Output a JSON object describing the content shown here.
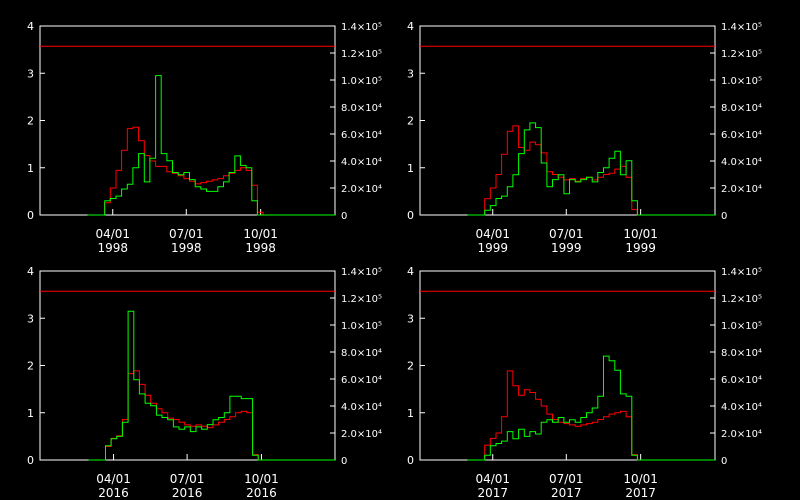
{
  "chart_data": [
    {
      "type": "line",
      "title": "",
      "year": "1998",
      "x_ticks": [
        {
          "top": "04/01",
          "bottom": "1998"
        },
        {
          "top": "07/01",
          "bottom": "1998"
        },
        {
          "top": "10/01",
          "bottom": "1998"
        }
      ],
      "y_left": {
        "lim": [
          0,
          4
        ],
        "ticks": [
          "0",
          "1",
          "2",
          "3",
          "4"
        ]
      },
      "y_right": {
        "lim": [
          0,
          140000
        ],
        "ticks": [
          "0",
          "2.0×10⁴",
          "4.0×10⁴",
          "6.0×10⁴",
          "8.0×10⁴",
          "1.0×10⁵",
          "1.2×10⁵",
          "1.4×10⁵"
        ]
      },
      "reference_line": {
        "axis": "right",
        "value": 125000,
        "color": "#ff0000"
      },
      "series": [
        {
          "axis": "right",
          "color": "#ff0000",
          "step": true,
          "x": [
            "1998-03-01",
            "1998-03-15",
            "1998-03-22",
            "1998-03-29",
            "1998-04-05",
            "1998-04-12",
            "1998-04-19",
            "1998-04-26",
            "1998-05-03",
            "1998-05-10",
            "1998-05-17",
            "1998-05-24",
            "1998-05-31",
            "1998-06-07",
            "1998-06-14",
            "1998-06-21",
            "1998-06-28",
            "1998-07-05",
            "1998-07-12",
            "1998-07-19",
            "1998-07-26",
            "1998-08-02",
            "1998-08-09",
            "1998-08-16",
            "1998-08-23",
            "1998-08-30",
            "1998-09-06",
            "1998-09-13",
            "1998-09-20",
            "1998-09-27",
            "1998-10-04",
            "1998-10-11",
            "1998-11-15",
            "1998-12-05"
          ],
          "y": [
            0,
            0,
            9000,
            20000,
            33000,
            48000,
            64000,
            65000,
            55000,
            44000,
            40000,
            36000,
            36000,
            32000,
            31000,
            29000,
            27000,
            25000,
            23000,
            24000,
            25000,
            26000,
            27000,
            29000,
            31000,
            33000,
            35000,
            33000,
            22000,
            2000,
            0,
            0,
            0,
            0
          ]
        },
        {
          "axis": "left",
          "color": "#00ff00",
          "step": true,
          "x": [
            "1998-03-01",
            "1998-03-15",
            "1998-03-22",
            "1998-03-29",
            "1998-04-05",
            "1998-04-12",
            "1998-04-19",
            "1998-04-26",
            "1998-05-03",
            "1998-05-10",
            "1998-05-17",
            "1998-05-24",
            "1998-05-31",
            "1998-06-07",
            "1998-06-14",
            "1998-06-21",
            "1998-06-28",
            "1998-07-05",
            "1998-07-12",
            "1998-07-19",
            "1998-07-26",
            "1998-08-02",
            "1998-08-09",
            "1998-08-16",
            "1998-08-23",
            "1998-08-30",
            "1998-09-06",
            "1998-09-13",
            "1998-09-20",
            "1998-09-27",
            "1998-10-04",
            "1998-10-11",
            "1998-11-15",
            "1998-12-05"
          ],
          "y": [
            0,
            0,
            0.3,
            0.35,
            0.4,
            0.55,
            0.65,
            1.0,
            1.3,
            0.7,
            1.2,
            2.95,
            1.3,
            1.15,
            0.9,
            0.85,
            0.9,
            0.75,
            0.6,
            0.55,
            0.5,
            0.5,
            0.6,
            0.7,
            0.9,
            1.25,
            1.05,
            1.0,
            0.3,
            0,
            0,
            0,
            0,
            0
          ]
        }
      ]
    },
    {
      "type": "line",
      "title": "",
      "year": "1999",
      "x_ticks": [
        {
          "top": "04/01",
          "bottom": "1999"
        },
        {
          "top": "07/01",
          "bottom": "1999"
        },
        {
          "top": "10/01",
          "bottom": "1999"
        }
      ],
      "y_left": {
        "lim": [
          0,
          4
        ],
        "ticks": [
          "0",
          "1",
          "2",
          "3",
          "4"
        ]
      },
      "y_right": {
        "lim": [
          0,
          140000
        ],
        "ticks": [
          "0",
          "2.0×10⁴",
          "4.0×10⁴",
          "6.0×10⁴",
          "8.0×10⁴",
          "1.0×10⁵",
          "1.2×10⁵",
          "1.4×10⁵"
        ]
      },
      "reference_line": {
        "axis": "right",
        "value": 125000,
        "color": "#ff0000"
      },
      "series": [
        {
          "axis": "right",
          "color": "#ff0000",
          "step": true,
          "x": [
            "1999-03-01",
            "1999-03-15",
            "1999-03-22",
            "1999-03-29",
            "1999-04-05",
            "1999-04-12",
            "1999-04-19",
            "1999-04-26",
            "1999-05-03",
            "1999-05-10",
            "1999-05-17",
            "1999-05-24",
            "1999-05-31",
            "1999-06-07",
            "1999-06-14",
            "1999-06-21",
            "1999-06-28",
            "1999-07-05",
            "1999-07-12",
            "1999-07-19",
            "1999-07-26",
            "1999-08-02",
            "1999-08-09",
            "1999-08-16",
            "1999-08-23",
            "1999-08-30",
            "1999-09-06",
            "1999-09-13",
            "1999-09-20",
            "1999-09-27",
            "1999-10-04",
            "1999-10-11",
            "1999-11-15",
            "1999-12-05"
          ],
          "y": [
            0,
            0,
            12000,
            20000,
            30000,
            45000,
            62000,
            66000,
            50000,
            48000,
            54000,
            52000,
            46000,
            32000,
            30000,
            28000,
            26000,
            27000,
            25000,
            27000,
            28000,
            26000,
            28000,
            30000,
            31000,
            34000,
            36000,
            28000,
            4000,
            0,
            0,
            0,
            0,
            0
          ]
        },
        {
          "axis": "left",
          "color": "#00ff00",
          "step": true,
          "x": [
            "1999-03-01",
            "1999-03-15",
            "1999-03-22",
            "1999-03-29",
            "1999-04-05",
            "1999-04-12",
            "1999-04-19",
            "1999-04-26",
            "1999-05-03",
            "1999-05-10",
            "1999-05-17",
            "1999-05-24",
            "1999-05-31",
            "1999-06-07",
            "1999-06-14",
            "1999-06-21",
            "1999-06-28",
            "1999-07-05",
            "1999-07-12",
            "1999-07-19",
            "1999-07-26",
            "1999-08-02",
            "1999-08-09",
            "1999-08-16",
            "1999-08-23",
            "1999-08-30",
            "1999-09-06",
            "1999-09-13",
            "1999-09-20",
            "1999-09-27",
            "1999-10-04",
            "1999-10-11",
            "1999-11-15",
            "1999-12-05"
          ],
          "y": [
            0,
            0,
            0.1,
            0.2,
            0.35,
            0.4,
            0.6,
            0.85,
            1.3,
            1.8,
            1.95,
            1.85,
            1.1,
            0.6,
            0.75,
            0.85,
            0.45,
            0.75,
            0.7,
            0.75,
            0.8,
            0.7,
            0.9,
            1.0,
            1.2,
            1.35,
            0.85,
            1.15,
            0.3,
            0,
            0,
            0,
            0,
            0
          ]
        }
      ]
    },
    {
      "type": "line",
      "title": "",
      "year": "2016",
      "x_ticks": [
        {
          "top": "04/01",
          "bottom": "2016"
        },
        {
          "top": "07/01",
          "bottom": "2016"
        },
        {
          "top": "10/01",
          "bottom": "2016"
        }
      ],
      "y_left": {
        "lim": [
          0,
          4
        ],
        "ticks": [
          "0",
          "1",
          "2",
          "3",
          "4"
        ]
      },
      "y_right": {
        "lim": [
          0,
          140000
        ],
        "ticks": [
          "0",
          "2.0×10⁴",
          "4.0×10⁴",
          "6.0×10⁴",
          "8.0×10⁴",
          "1.0×10⁵",
          "1.2×10⁵",
          "1.4×10⁵"
        ]
      },
      "reference_line": {
        "axis": "right",
        "value": 125000,
        "color": "#ff0000"
      },
      "series": [
        {
          "axis": "right",
          "color": "#ff0000",
          "step": true,
          "x": [
            "2016-03-01",
            "2016-03-15",
            "2016-03-22",
            "2016-03-29",
            "2016-04-05",
            "2016-04-12",
            "2016-04-19",
            "2016-04-26",
            "2016-05-03",
            "2016-05-10",
            "2016-05-17",
            "2016-05-24",
            "2016-05-31",
            "2016-06-07",
            "2016-06-14",
            "2016-06-21",
            "2016-06-28",
            "2016-07-05",
            "2016-07-12",
            "2016-07-19",
            "2016-07-26",
            "2016-08-02",
            "2016-08-09",
            "2016-08-16",
            "2016-08-23",
            "2016-08-30",
            "2016-09-06",
            "2016-09-13",
            "2016-09-20",
            "2016-09-27",
            "2016-10-04",
            "2016-10-11",
            "2016-11-15",
            "2016-12-05"
          ],
          "y": [
            0,
            0,
            10000,
            16000,
            18000,
            30000,
            64000,
            66000,
            56000,
            48000,
            42000,
            38000,
            35000,
            31000,
            30000,
            28000,
            26000,
            25000,
            26000,
            25000,
            24000,
            26000,
            28000,
            30000,
            32000,
            35000,
            36000,
            35000,
            4000,
            0,
            0,
            0,
            0,
            0
          ]
        },
        {
          "axis": "left",
          "color": "#00ff00",
          "step": true,
          "x": [
            "2016-03-01",
            "2016-03-15",
            "2016-03-22",
            "2016-03-29",
            "2016-04-05",
            "2016-04-12",
            "2016-04-19",
            "2016-04-26",
            "2016-05-03",
            "2016-05-10",
            "2016-05-17",
            "2016-05-24",
            "2016-05-31",
            "2016-06-07",
            "2016-06-14",
            "2016-06-21",
            "2016-06-28",
            "2016-07-05",
            "2016-07-12",
            "2016-07-19",
            "2016-07-26",
            "2016-08-02",
            "2016-08-09",
            "2016-08-16",
            "2016-08-23",
            "2016-08-30",
            "2016-09-06",
            "2016-09-13",
            "2016-09-20",
            "2016-09-27",
            "2016-10-04",
            "2016-10-11",
            "2016-11-15",
            "2016-12-05"
          ],
          "y": [
            0,
            0,
            0.3,
            0.45,
            0.5,
            0.8,
            3.15,
            1.7,
            1.4,
            1.2,
            1.15,
            0.95,
            0.9,
            0.85,
            0.7,
            0.65,
            0.7,
            0.6,
            0.7,
            0.65,
            0.75,
            0.85,
            0.9,
            1.0,
            1.35,
            1.35,
            1.3,
            1.3,
            0.1,
            0,
            0,
            0,
            0,
            0
          ]
        }
      ]
    },
    {
      "type": "line",
      "title": "",
      "year": "2017",
      "x_ticks": [
        {
          "top": "04/01",
          "bottom": "2017"
        },
        {
          "top": "07/01",
          "bottom": "2017"
        },
        {
          "top": "10/01",
          "bottom": "2017"
        }
      ],
      "y_left": {
        "lim": [
          0,
          4
        ],
        "ticks": [
          "0",
          "1",
          "2",
          "3",
          "4"
        ]
      },
      "y_right": {
        "lim": [
          0,
          140000
        ],
        "ticks": [
          "0",
          "2.0×10⁴",
          "4.0×10⁴",
          "6.0×10⁴",
          "8.0×10⁴",
          "1.0×10⁵",
          "1.2×10⁵",
          "1.4×10⁵"
        ]
      },
      "reference_line": {
        "axis": "right",
        "value": 125000,
        "color": "#ff0000"
      },
      "series": [
        {
          "axis": "right",
          "color": "#ff0000",
          "step": true,
          "x": [
            "2017-03-01",
            "2017-03-15",
            "2017-03-22",
            "2017-03-29",
            "2017-04-05",
            "2017-04-12",
            "2017-04-19",
            "2017-04-26",
            "2017-05-03",
            "2017-05-10",
            "2017-05-17",
            "2017-05-24",
            "2017-05-31",
            "2017-06-07",
            "2017-06-14",
            "2017-06-21",
            "2017-06-28",
            "2017-07-05",
            "2017-07-12",
            "2017-07-19",
            "2017-07-26",
            "2017-08-02",
            "2017-08-09",
            "2017-08-16",
            "2017-08-23",
            "2017-08-30",
            "2017-09-06",
            "2017-09-13",
            "2017-09-20",
            "2017-09-27",
            "2017-10-04",
            "2017-10-11",
            "2017-11-15",
            "2017-12-05"
          ],
          "y": [
            0,
            0,
            11000,
            16000,
            20000,
            32000,
            66000,
            55000,
            48000,
            52000,
            50000,
            45000,
            40000,
            34000,
            30000,
            28000,
            27000,
            26000,
            25000,
            26000,
            27000,
            28000,
            30000,
            32000,
            34000,
            35000,
            36000,
            32000,
            4000,
            0,
            0,
            0,
            0,
            0
          ]
        },
        {
          "axis": "left",
          "color": "#00ff00",
          "step": true,
          "x": [
            "2017-03-01",
            "2017-03-15",
            "2017-03-22",
            "2017-03-29",
            "2017-04-05",
            "2017-04-12",
            "2017-04-19",
            "2017-04-26",
            "2017-05-03",
            "2017-05-10",
            "2017-05-17",
            "2017-05-24",
            "2017-05-31",
            "2017-06-07",
            "2017-06-14",
            "2017-06-21",
            "2017-06-28",
            "2017-07-05",
            "2017-07-12",
            "2017-07-19",
            "2017-07-26",
            "2017-08-02",
            "2017-08-09",
            "2017-08-16",
            "2017-08-23",
            "2017-08-30",
            "2017-09-06",
            "2017-09-13",
            "2017-09-20",
            "2017-09-27",
            "2017-10-04",
            "2017-10-11",
            "2017-11-15",
            "2017-12-05"
          ],
          "y": [
            0,
            0,
            0.1,
            0.3,
            0.35,
            0.4,
            0.6,
            0.45,
            0.65,
            0.5,
            0.6,
            0.55,
            0.8,
            0.85,
            0.8,
            0.9,
            0.8,
            0.85,
            0.8,
            0.9,
            1.0,
            1.1,
            1.35,
            2.2,
            2.1,
            1.9,
            1.4,
            1.35,
            0.1,
            0,
            0,
            0,
            0,
            0
          ]
        }
      ]
    }
  ]
}
